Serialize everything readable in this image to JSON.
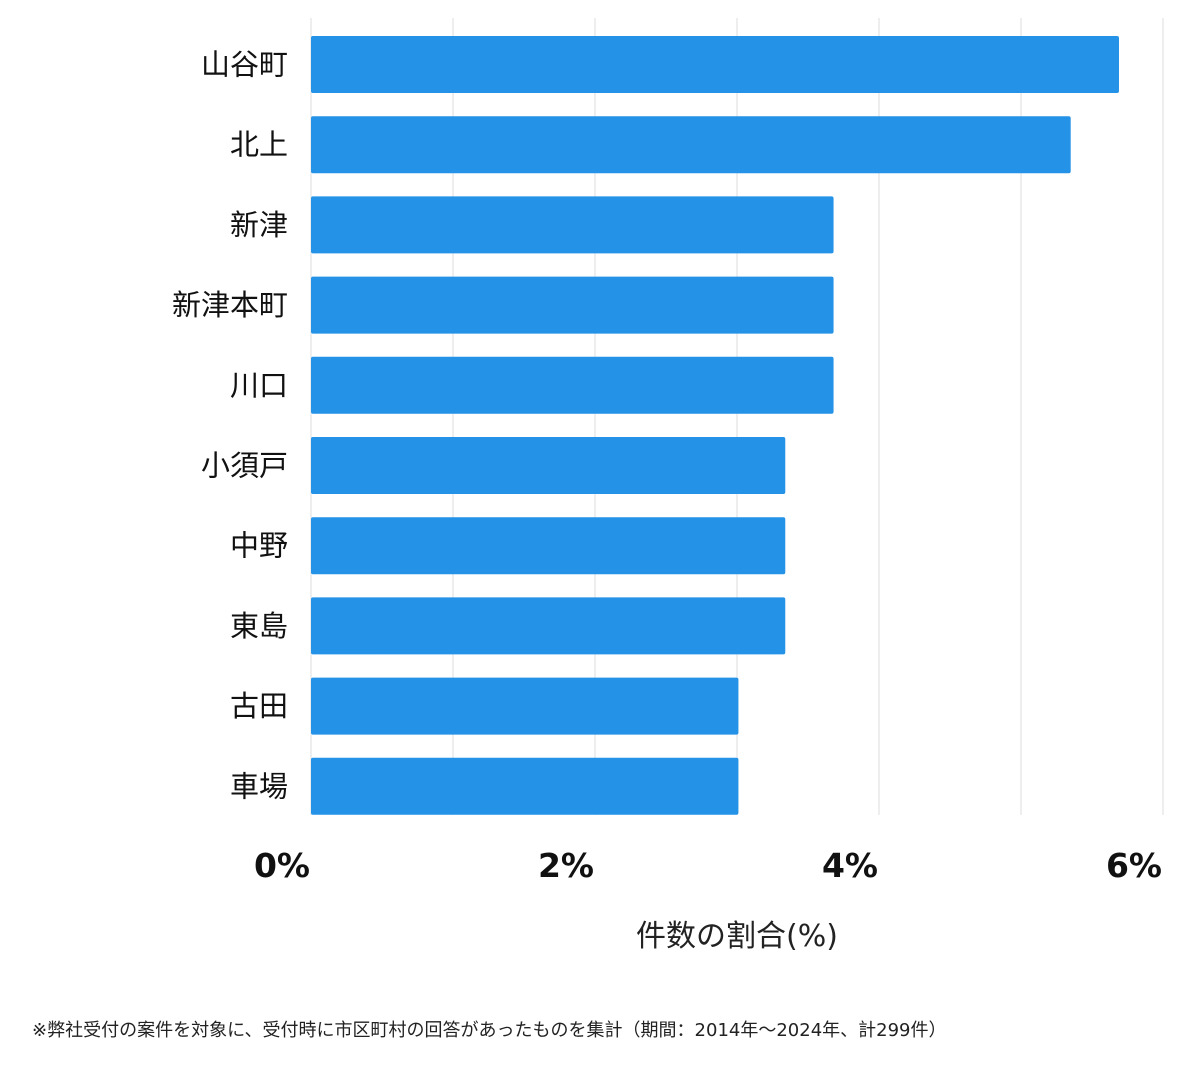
{
  "chart_data": {
    "type": "bar",
    "orientation": "horizontal",
    "categories": [
      "山谷町",
      "北上",
      "新津",
      "新津本町",
      "川口",
      "小須戸",
      "中野",
      "東島",
      "古田",
      "車場"
    ],
    "values": [
      5.69,
      5.35,
      3.68,
      3.68,
      3.68,
      3.34,
      3.34,
      3.34,
      3.01,
      3.01
    ],
    "xlabel": "件数の割合(%)",
    "xlim": [
      0,
      6
    ],
    "xticks": [
      0,
      2,
      4,
      6
    ],
    "xtick_labels": [
      "0%",
      "2%",
      "4%",
      "6%"
    ],
    "grid_step": 1,
    "grid": true,
    "bar_color": "#2492e6"
  },
  "footnote": "※弊社受付の案件を対象に、受付時に市区町村の回答があったものを集計（期間：2014年〜2024年、計299件）"
}
